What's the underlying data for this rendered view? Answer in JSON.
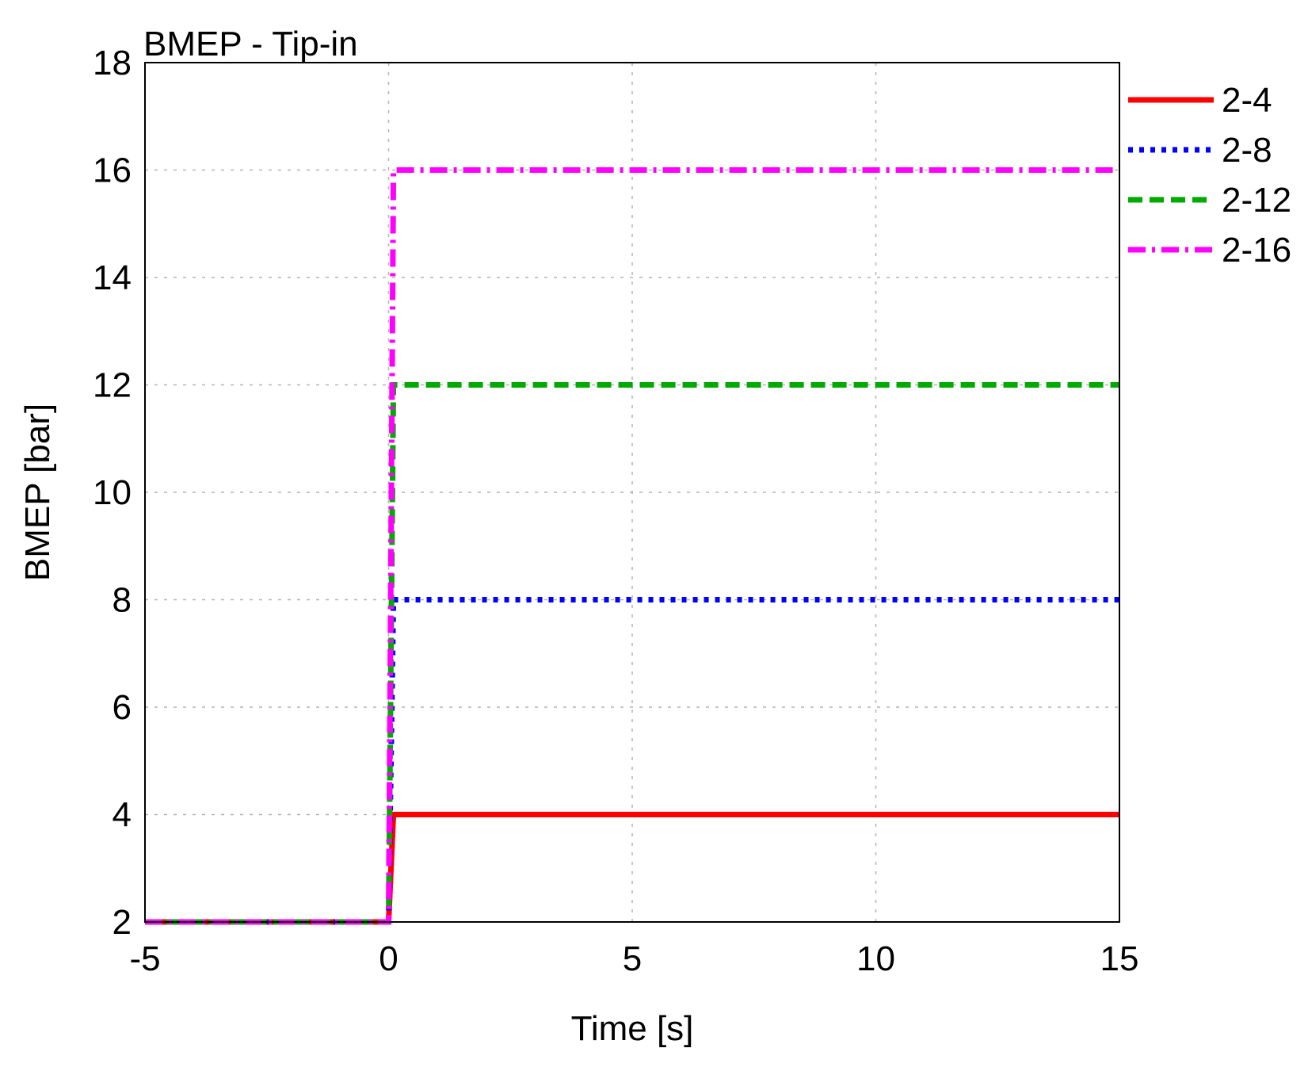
{
  "chart_data": {
    "type": "line",
    "title": "BMEP - Tip-in",
    "xlabel": "Time [s]",
    "ylabel": "BMEP [bar]",
    "xlim": [
      -5,
      15
    ],
    "ylim": [
      2,
      18
    ],
    "xticks": [
      -5,
      0,
      5,
      10,
      15
    ],
    "xtick_labels": [
      "-5",
      "0",
      "5",
      "10",
      "15"
    ],
    "yticks": [
      2,
      4,
      6,
      8,
      10,
      12,
      14,
      16,
      18
    ],
    "ytick_labels": [
      "2",
      "4",
      "6",
      "8",
      "10",
      "12",
      "14",
      "16",
      "18"
    ],
    "grid": true,
    "legend_position": "outside-right-top",
    "series": [
      {
        "name": "2-4",
        "color": "#ff0000",
        "style": "solid",
        "x": [
          -5,
          0,
          0.1,
          15
        ],
        "y": [
          2,
          2,
          4,
          4
        ]
      },
      {
        "name": "2-8",
        "color": "#0000ff",
        "style": "dotted",
        "x": [
          -5,
          0,
          0.1,
          15
        ],
        "y": [
          2,
          2,
          8,
          8
        ]
      },
      {
        "name": "2-12",
        "color": "#00aa00",
        "style": "dashed",
        "x": [
          -5,
          0,
          0.1,
          15
        ],
        "y": [
          2,
          2,
          12,
          12
        ]
      },
      {
        "name": "2-16",
        "color": "#ff00ff",
        "style": "dashdot",
        "x": [
          -5,
          0,
          0.1,
          15
        ],
        "y": [
          2,
          2,
          16,
          16
        ]
      }
    ]
  }
}
